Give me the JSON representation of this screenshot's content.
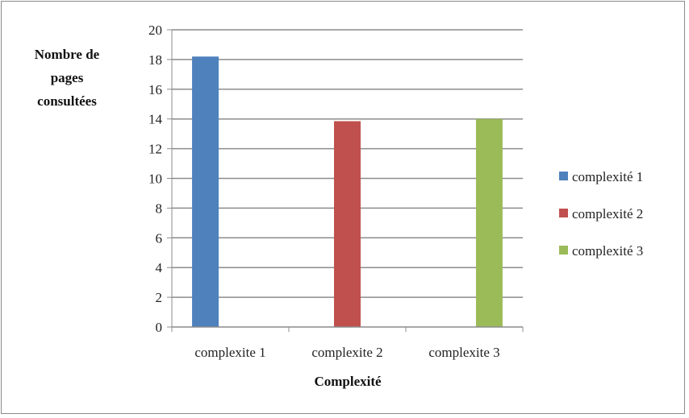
{
  "chart_data": {
    "type": "bar",
    "categories": [
      "complexite 1",
      "complexite 2",
      "complexite 3"
    ],
    "series": [
      {
        "name": "complexité 1",
        "color": "#4f81bd",
        "values": [
          18.2,
          null,
          null
        ]
      },
      {
        "name": "complexité 2",
        "color": "#c0504d",
        "values": [
          null,
          13.85,
          null
        ]
      },
      {
        "name": "complexité 3",
        "color": "#9bbb59",
        "values": [
          null,
          null,
          14
        ]
      }
    ],
    "title": "",
    "xlabel": "Complexité",
    "ylabel_lines": [
      "Nombre de",
      "pages",
      "consultées"
    ],
    "ylim": [
      0,
      20
    ],
    "yticks": [
      0,
      2,
      4,
      6,
      8,
      10,
      12,
      14,
      16,
      18,
      20
    ],
    "grid": true,
    "legend_position": "right"
  }
}
